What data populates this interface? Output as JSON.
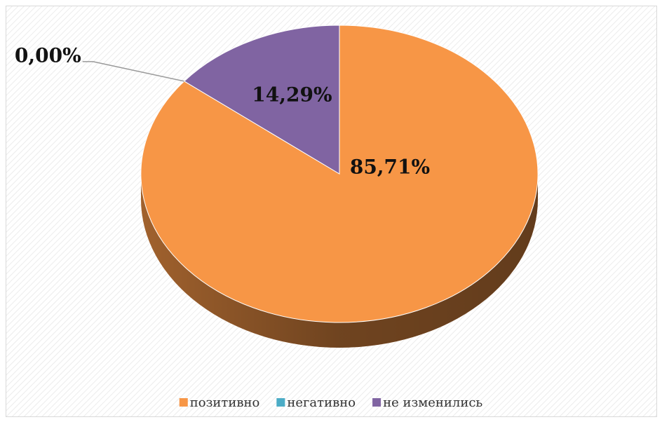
{
  "chart_data": {
    "type": "pie",
    "categories": [
      "позитивно",
      "негативно",
      "не изменились"
    ],
    "values": [
      85.71,
      0,
      14.29
    ],
    "value_labels": [
      "85,71%",
      "0,00%",
      "14,29%"
    ],
    "colors": [
      "#f79646",
      "#4bacc6",
      "#8064a2"
    ],
    "legend": "bottom"
  }
}
